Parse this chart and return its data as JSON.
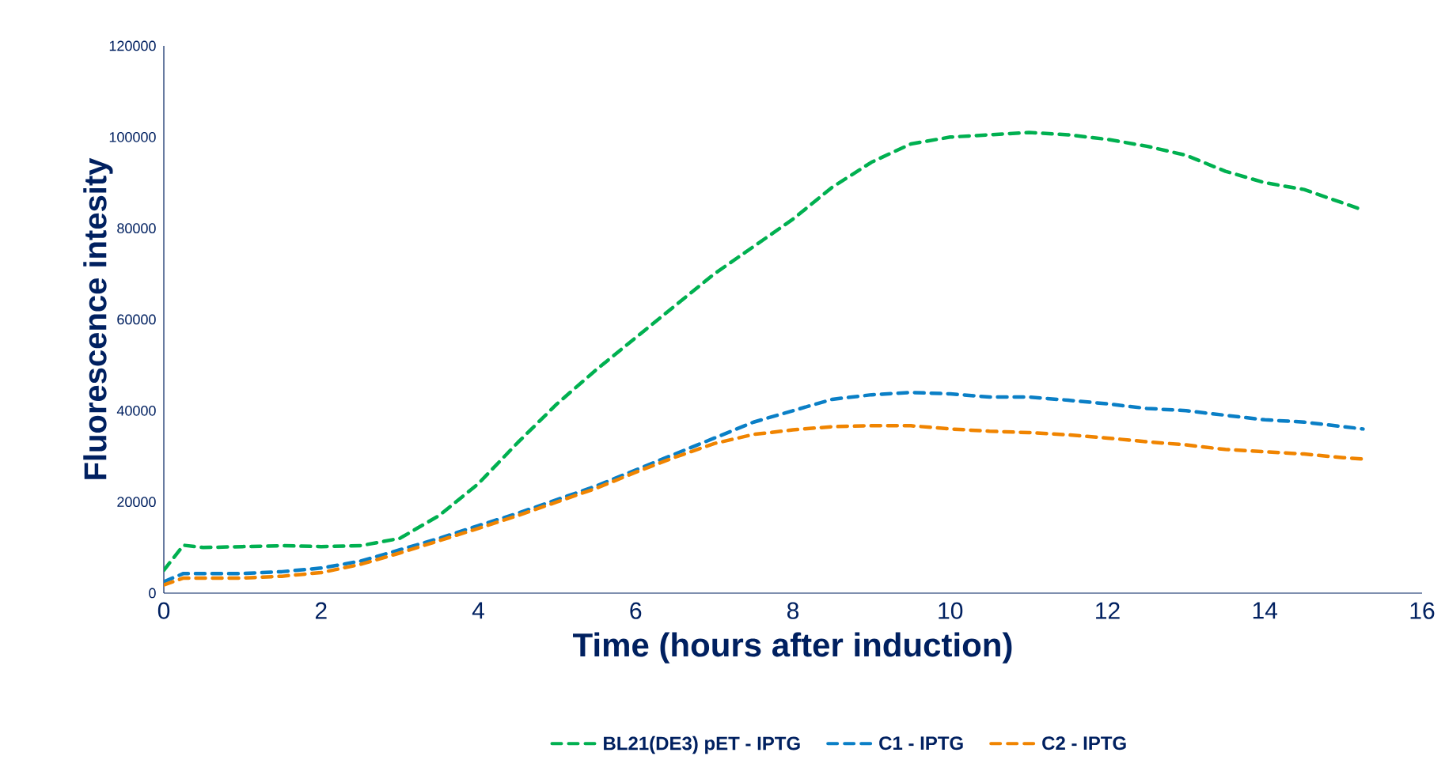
{
  "chart_data": {
    "type": "line",
    "xlabel": "Time (hours after induction)",
    "ylabel": "Fluorescence intesity",
    "xlim": [
      0,
      16
    ],
    "ylim": [
      0,
      120000
    ],
    "xticks": [
      0,
      2,
      4,
      6,
      8,
      10,
      12,
      14,
      16
    ],
    "yticks": [
      0,
      20000,
      40000,
      60000,
      80000,
      100000,
      120000
    ],
    "grid": false,
    "legend": "bottom",
    "line_style": "dashed",
    "marker": "none",
    "x": [
      0,
      0.25,
      0.5,
      1,
      1.5,
      2,
      2.5,
      3,
      3.5,
      4,
      4.5,
      5,
      5.5,
      6,
      6.5,
      7,
      7.5,
      8,
      8.5,
      9,
      9.5,
      10,
      10.5,
      11,
      11.5,
      12,
      12.5,
      13,
      13.5,
      14,
      14.5,
      15,
      15.25
    ],
    "series": [
      {
        "name": "BL21(DE3) pET - IPTG",
        "color": "#00b050",
        "values": [
          5000,
          10500,
          10000,
          10200,
          10400,
          10200,
          10400,
          12000,
          17000,
          24000,
          33000,
          41500,
          49000,
          56000,
          63000,
          70000,
          76000,
          82000,
          89000,
          94500,
          98500,
          100000,
          100500,
          101000,
          100500,
          99500,
          98000,
          96000,
          92500,
          90000,
          88500,
          85500,
          84000
        ]
      },
      {
        "name": "C1 - IPTG",
        "color": "#0a7fc6",
        "values": [
          2500,
          4300,
          4300,
          4300,
          4700,
          5500,
          7000,
          9500,
          12000,
          14800,
          17500,
          20500,
          23500,
          27000,
          30500,
          34000,
          37500,
          40000,
          42500,
          43500,
          44000,
          43700,
          43000,
          43000,
          42300,
          41500,
          40500,
          40000,
          39000,
          38000,
          37500,
          36500,
          36000
        ]
      },
      {
        "name": "C2 - IPTG",
        "color": "#f08400",
        "values": [
          1800,
          3300,
          3300,
          3300,
          3700,
          4500,
          6300,
          8800,
          11500,
          14200,
          17000,
          20000,
          23000,
          26500,
          29800,
          32800,
          34800,
          35800,
          36500,
          36700,
          36700,
          36000,
          35500,
          35200,
          34700,
          34000,
          33200,
          32500,
          31500,
          31000,
          30500,
          29700,
          29400
        ]
      }
    ]
  }
}
